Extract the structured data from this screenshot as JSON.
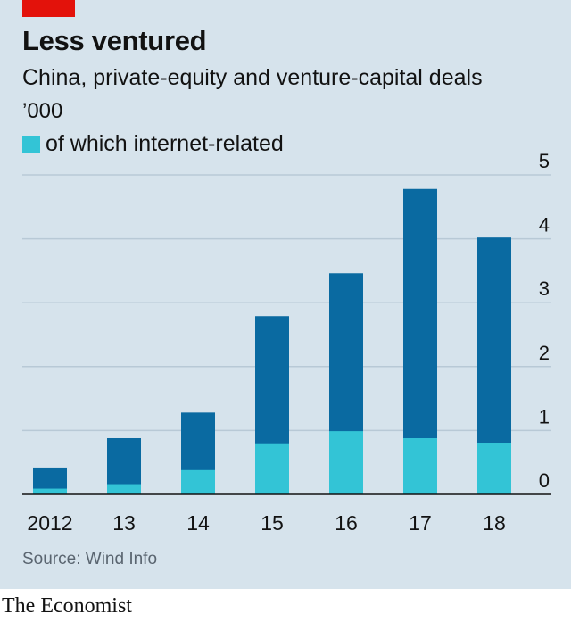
{
  "header": {
    "title": "Less ventured",
    "subtitle": "China, private-equity and venture-capital deals",
    "unit": "’000"
  },
  "legend": {
    "label": "of which internet-related"
  },
  "footer": {
    "source": "Source: Wind Info",
    "brand": "The Economist"
  },
  "colors": {
    "background": "#d6e3ec",
    "total_bar": "#0a6aa1",
    "internet_bar": "#33c4d6",
    "accent_tag": "#e3120b",
    "gridline": "#b8c9d6"
  },
  "chart_data": {
    "type": "bar",
    "stacked": true,
    "categories": [
      "2012",
      "13",
      "14",
      "15",
      "16",
      "17",
      "18"
    ],
    "series": [
      {
        "name": "total",
        "values": [
          0.42,
          0.88,
          1.28,
          2.79,
          3.46,
          4.78,
          4.02
        ]
      },
      {
        "name": "of which internet-related",
        "values": [
          0.09,
          0.16,
          0.38,
          0.8,
          0.99,
          0.88,
          0.81
        ]
      }
    ],
    "ylim": [
      0,
      5
    ],
    "yticks": [
      "0",
      "1",
      "2",
      "3",
      "4",
      "5"
    ],
    "grid": true,
    "y_axis_side": "right",
    "legend_position": "top-left"
  }
}
